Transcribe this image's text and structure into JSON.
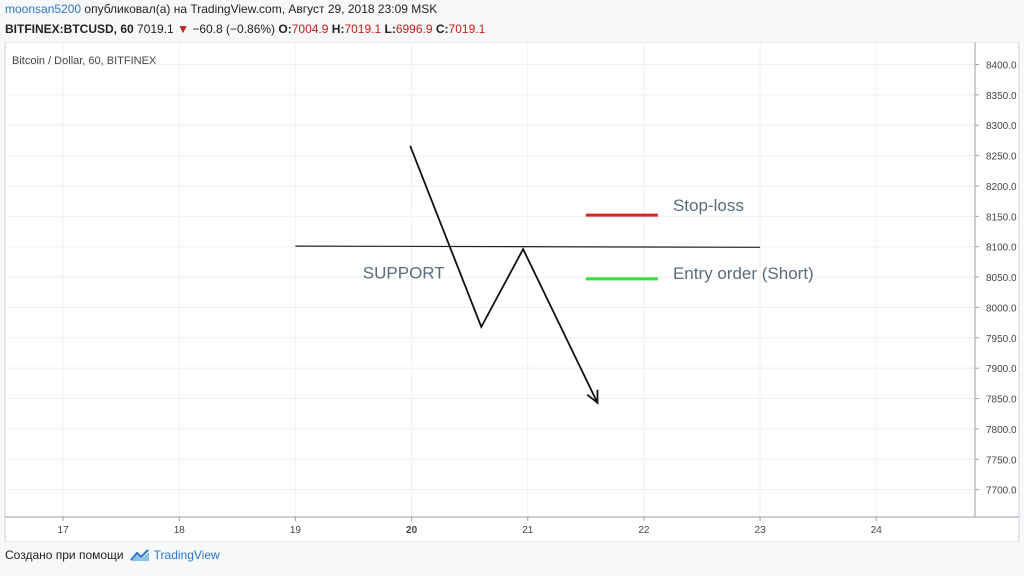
{
  "header": {
    "user": "moonsan5200",
    "published": " опубликовал(а) на TradingView.com, Август 29, 2018 23:09 MSK",
    "symbol": "BITFINEX:BTCUSD, 60",
    "price": "7019.1",
    "change_arrow": "▼",
    "change": "−60.8 (−0.86%)",
    "o_label": "O:",
    "o_value": "7004.9",
    "h_label": "H:",
    "h_value": "7019.1",
    "l_label": "L:",
    "l_value": "6996.9",
    "c_label": "C:",
    "c_value": "7019.1"
  },
  "chart_title": "Bitcoin / Dollar, 60, BITFINEX",
  "footer": {
    "created_with": "Создано при помощи",
    "brand": "TradingView",
    "brand_icon": "tradingview-logo-icon"
  },
  "colors": {
    "stop_loss": "#e32020",
    "entry": "#2ee62e",
    "accent": "#2a78c8",
    "down": "#c0201b"
  },
  "chart_data": {
    "type": "line",
    "title": "Bitcoin / Dollar, 60, BITFINEX",
    "xlabel": "",
    "ylabel": "",
    "x_ticks": [
      "17",
      "18",
      "19",
      "20",
      "21",
      "22",
      "23",
      "24"
    ],
    "x_ticks_bold": [
      "20"
    ],
    "xlim": [
      16.5,
      24.85
    ],
    "y_ticks": [
      "8400.0",
      "8350.0",
      "8300.0",
      "8250.0",
      "8200.0",
      "8150.0",
      "8100.0",
      "8050.0",
      "8000.0",
      "7950.0",
      "7900.0",
      "7850.0",
      "7800.0",
      "7750.0",
      "7700.0"
    ],
    "ylim": [
      7655,
      8437
    ],
    "grid": true,
    "series": [
      {
        "label": "",
        "x": [
          19.99,
          20.6,
          20.96,
          21.6
        ],
        "y": [
          8265,
          7968,
          8096,
          7843
        ]
      }
    ],
    "support_line": {
      "label": "SUPPORT",
      "x": [
        19.0,
        23.0
      ],
      "y": [
        8101,
        8099
      ]
    },
    "legend": [
      {
        "name": "Stop-loss",
        "color": "#e32020",
        "y": 8152
      },
      {
        "name": "Entry order (Short)",
        "color": "#2ee62e",
        "y": 8047
      }
    ]
  }
}
